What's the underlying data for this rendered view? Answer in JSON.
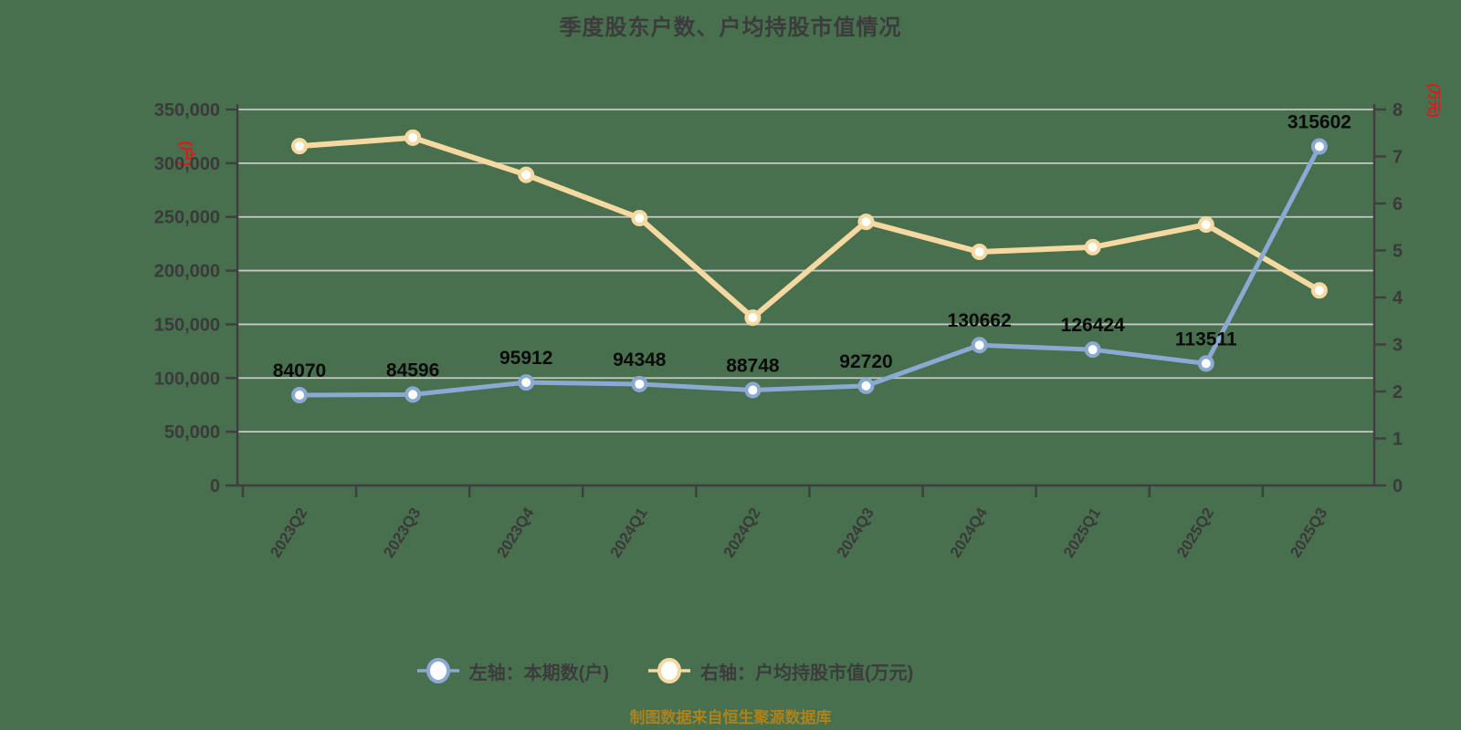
{
  "title": "季度股东户数、户均持股市值情况",
  "footer": "制图数据来自恒生聚源数据库",
  "colors": {
    "background": "#48704E",
    "series_left": "#8AA9D3",
    "series_right": "#F6D9A1",
    "marker_fill": "#FFFFFF",
    "grid": "#C6C9C6",
    "axis": "#3F3F3F",
    "tick_text": "#3A3A3A",
    "data_label_text": "#0A0A0A",
    "unit_text": "#EE1111",
    "footer_text": "#AA831E"
  },
  "legend": {
    "items": [
      {
        "label": "左轴：本期数(户)",
        "color": "#8AA9D3"
      },
      {
        "label": "右轴：户均持股市值(万元)",
        "color": "#F6D9A1"
      }
    ]
  },
  "chart_data": {
    "type": "line",
    "title": "季度股东户数、户均持股市值情况",
    "categories": [
      "2023Q2",
      "2023Q3",
      "2023Q4",
      "2024Q1",
      "2024Q2",
      "2024Q3",
      "2024Q4",
      "2025Q1",
      "2025Q2",
      "2025Q3"
    ],
    "series": [
      {
        "name": "左轴：本期数(户)",
        "axis": "left",
        "color": "#8AA9D3",
        "show_labels": true,
        "values": [
          84070,
          84596,
          95912,
          94348,
          88748,
          92720,
          130662,
          126424,
          113511,
          315602
        ]
      },
      {
        "name": "右轴：户均持股市值(万元)",
        "axis": "right",
        "color": "#F6D9A1",
        "show_labels": false,
        "values": [
          7.22,
          7.4,
          6.61,
          5.69,
          3.57,
          5.61,
          4.97,
          5.07,
          5.55,
          4.15
        ]
      }
    ],
    "left_axis": {
      "unit": "(户)",
      "min": 0,
      "max": 350000,
      "tick_labels": [
        "0",
        "50,000",
        "100,000",
        "150,000",
        "200,000",
        "250,000",
        "300,000",
        "350,000"
      ]
    },
    "right_axis": {
      "unit": "(万元)",
      "min": 0,
      "max": 8,
      "tick_labels": [
        "0",
        "1",
        "2",
        "3",
        "4",
        "5",
        "6",
        "7",
        "8"
      ]
    },
    "grid": "horizontal",
    "legend_position": "bottom"
  }
}
